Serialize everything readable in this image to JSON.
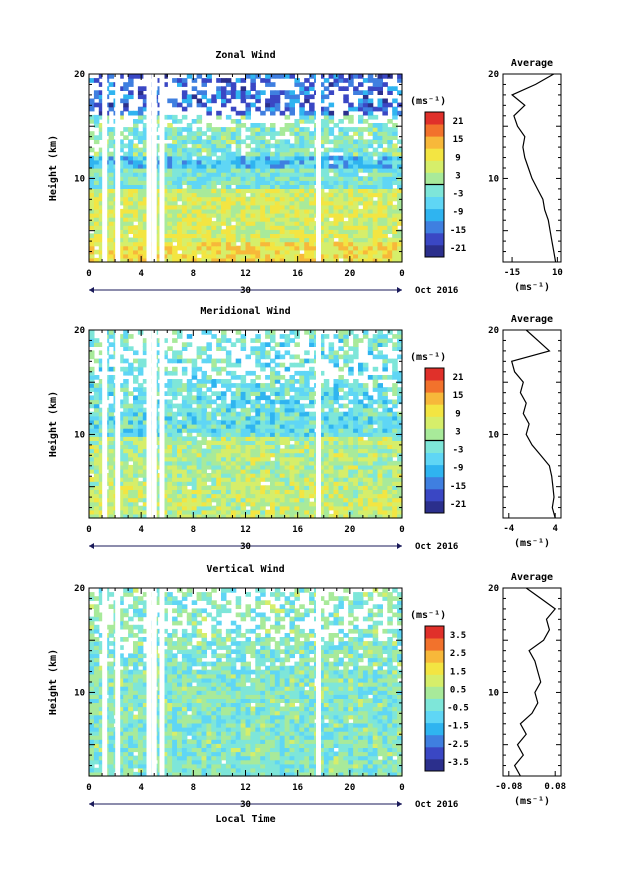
{
  "figure": {
    "xlabel": "Local Time",
    "x_ticks": [
      "0",
      "4",
      "8",
      "12",
      "16",
      "20",
      "0"
    ],
    "date_day": "30",
    "date_suffix": "Oct 2016",
    "ylabel": "Height (km)",
    "y_ticks": [
      "10",
      "20"
    ],
    "cbar_unit": "(ms⁻¹)",
    "avg_unit": "(ms⁻¹)",
    "avg_title": "Average"
  },
  "chart_data": [
    {
      "type": "heatmap",
      "title": "Zonal Wind",
      "x_range_hours": [
        0,
        24
      ],
      "y_range_km": [
        2,
        20
      ],
      "colorbar_ticks": [
        "21",
        "15",
        "9",
        "3",
        "-3",
        "-9",
        "-15",
        "-21"
      ],
      "colorbar_range": [
        -24,
        24
      ],
      "field_description_by_height": [
        {
          "height_km": [
            2,
            4
          ],
          "value": 10
        },
        {
          "height_km": [
            4,
            9
          ],
          "value": 6
        },
        {
          "height_km": [
            9,
            11
          ],
          "value": -2
        },
        {
          "height_km": [
            11,
            12
          ],
          "value": -8
        },
        {
          "height_km": [
            12,
            16
          ],
          "value": -1
        },
        {
          "height_km": [
            16,
            20
          ],
          "value": -15
        }
      ],
      "gaps_hours": [
        1.2,
        2.2,
        4.6,
        5.0,
        5.6,
        17.6
      ],
      "average_profile": {
        "title": "Average",
        "x_ticks": [
          "-15",
          "10"
        ],
        "x_range": [
          -20,
          12
        ],
        "height_km": [
          2,
          3,
          4,
          5,
          6,
          7,
          8,
          9,
          10,
          11,
          12,
          13,
          14,
          15,
          16,
          17,
          18,
          19,
          20
        ],
        "value": [
          9,
          8,
          7,
          6,
          5,
          3,
          2,
          -1,
          -4,
          -6,
          -8,
          -9,
          -8,
          -12,
          -14,
          -8,
          -15,
          -2,
          8
        ]
      }
    },
    {
      "type": "heatmap",
      "title": "Meridional Wind",
      "x_range_hours": [
        0,
        24
      ],
      "y_range_km": [
        2,
        20
      ],
      "colorbar_ticks": [
        "21",
        "15",
        "9",
        "3",
        "-3",
        "-9",
        "-15",
        "-21"
      ],
      "colorbar_range": [
        -24,
        24
      ],
      "field_description_by_height": [
        {
          "height_km": [
            2,
            5
          ],
          "value": 5
        },
        {
          "height_km": [
            5,
            10
          ],
          "value": 3
        },
        {
          "height_km": [
            10,
            14
          ],
          "value": -4
        },
        {
          "height_km": [
            14,
            20
          ],
          "value": -3
        }
      ],
      "gaps_hours": [
        1.2,
        2.2,
        4.6,
        5.0,
        5.6,
        17.6
      ],
      "average_profile": {
        "title": "Average",
        "x_ticks": [
          "-4",
          "4"
        ],
        "x_range": [
          -5,
          5
        ],
        "height_km": [
          2,
          3,
          4,
          5,
          6,
          7,
          8,
          9,
          10,
          11,
          12,
          13,
          14,
          15,
          16,
          17,
          18,
          19,
          20
        ],
        "value": [
          4,
          3.5,
          3.8,
          3.6,
          3.4,
          3,
          1.5,
          0,
          -1,
          -0.5,
          -1.5,
          -1,
          -2,
          -1.5,
          -3,
          -3.5,
          3,
          1,
          -1
        ]
      }
    },
    {
      "type": "heatmap",
      "title": "Vertical Wind",
      "x_range_hours": [
        0,
        24
      ],
      "y_range_km": [
        2,
        20
      ],
      "colorbar_ticks": [
        "3.5",
        "2.5",
        "1.5",
        "0.5",
        "-0.5",
        "-1.5",
        "-2.5",
        "-3.5"
      ],
      "colorbar_range": [
        -4,
        4
      ],
      "field_description_by_height": [
        {
          "height_km": [
            2,
            20
          ],
          "value": -0.2
        }
      ],
      "gaps_hours": [
        1.2,
        2.2,
        4.6,
        5.0,
        5.6,
        17.6
      ],
      "average_profile": {
        "title": "Average",
        "x_ticks": [
          "-0.08",
          "0.08"
        ],
        "x_range": [
          -0.1,
          0.1
        ],
        "height_km": [
          2,
          3,
          4,
          5,
          6,
          7,
          8,
          9,
          10,
          11,
          12,
          13,
          14,
          15,
          16,
          17,
          18,
          19,
          20
        ],
        "value": [
          -0.04,
          -0.06,
          -0.03,
          -0.05,
          -0.02,
          -0.04,
          0,
          0.02,
          0.01,
          0.03,
          0.02,
          0.01,
          -0.01,
          0.04,
          0.06,
          0.05,
          0.08,
          0.03,
          -0.02
        ]
      }
    }
  ]
}
